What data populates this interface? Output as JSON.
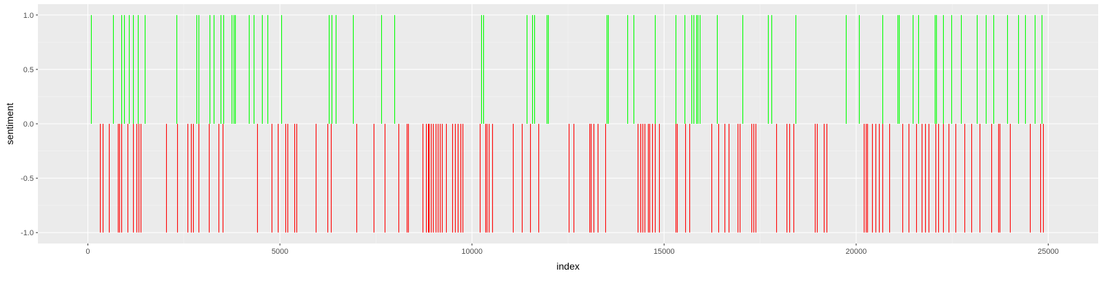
{
  "colors": {
    "panel_background": "#ebebeb",
    "grid_major": "#ffffff",
    "grid_minor": "#f5f5f5",
    "positive": "#00ff00",
    "negative": "#ff0000"
  },
  "chart_data": {
    "type": "bar",
    "xlabel": "index",
    "ylabel": "sentiment",
    "xlim": [
      -1300,
      26300
    ],
    "ylim": [
      -1.1,
      1.1
    ],
    "xticks": [
      0,
      5000,
      10000,
      15000,
      20000,
      25000
    ],
    "xtick_labels": [
      "0",
      "5000",
      "10000",
      "15000",
      "20000",
      "25000"
    ],
    "yticks": [
      -1.0,
      -0.5,
      0.0,
      0.5,
      1.0
    ],
    "ytick_labels": [
      "-1.0",
      "-0.5",
      "0.0",
      "0.5",
      "1.0"
    ],
    "grid": true,
    "legend": "none",
    "series": [
      {
        "value": 1,
        "color": "#00ff00",
        "x": [
          90,
          650,
          880,
          950,
          1060,
          1170,
          1300,
          1480,
          2300,
          2820,
          2880,
          3170,
          3270,
          3450,
          3520,
          3750,
          3800,
          3840,
          4200,
          4320,
          4530,
          4670,
          5030,
          6280,
          6350,
          6450,
          6900,
          7640,
          7980,
          10230,
          10300,
          11430,
          11570,
          11620,
          11950,
          11980,
          13500,
          13540,
          14040,
          14200,
          14760,
          15300,
          15530,
          15720,
          15770,
          15830,
          15880,
          15920,
          16370,
          17040,
          17710,
          17800,
          18420,
          19740,
          20080,
          20680,
          21080,
          21110,
          21470,
          21620,
          22050,
          22090,
          22260,
          22480,
          22720,
          23140,
          23370,
          23570,
          23930,
          24220,
          24400,
          24650,
          24830
        ]
      },
      {
        "value": -1,
        "color": "#ff0000",
        "x": [
          320,
          380,
          540,
          780,
          820,
          880,
          1040,
          1170,
          1260,
          1320,
          1380,
          2040,
          2330,
          2600,
          2690,
          2740,
          2880,
          3150,
          3400,
          3510,
          4400,
          4790,
          4950,
          5150,
          5200,
          5370,
          5430,
          5930,
          6230,
          6330,
          6990,
          7440,
          7730,
          8080,
          8300,
          8330,
          8720,
          8800,
          8850,
          8880,
          8930,
          8990,
          9060,
          9100,
          9160,
          9220,
          9330,
          9480,
          9560,
          9630,
          9700,
          9760,
          10200,
          10340,
          10380,
          10440,
          10520,
          11070,
          11300,
          11510,
          11720,
          12510,
          12650,
          13060,
          13100,
          13170,
          13280,
          13470,
          14320,
          14380,
          14440,
          14500,
          14580,
          14620,
          14690,
          14760,
          14870,
          15300,
          15330,
          15550,
          15660,
          16230,
          16420,
          16580,
          16690,
          16910,
          16970,
          17270,
          17320,
          17380,
          17920,
          18180,
          18260,
          18370,
          18930,
          18980,
          19160,
          19230,
          20200,
          20250,
          20290,
          20410,
          20500,
          20600,
          20680,
          20870,
          21210,
          21370,
          21560,
          21700,
          21790,
          21890,
          22070,
          22130,
          22270,
          22400,
          22580,
          22810,
          22990,
          23220,
          23520,
          23690,
          23730,
          24010,
          24520,
          24800,
          24870
        ]
      }
    ]
  }
}
